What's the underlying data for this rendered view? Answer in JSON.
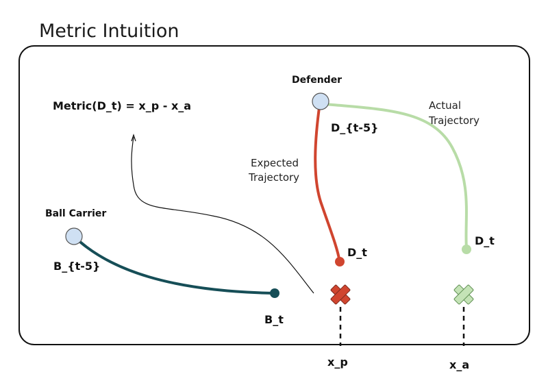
{
  "title": "Metric Intuition",
  "formula": "Metric(D_t) = x_p - x_a",
  "defender": {
    "label": "Defender",
    "start_label": "D_{t-5}"
  },
  "ball_carrier": {
    "label": "Ball Carrier",
    "start_label": "B_{t-5}",
    "end_label": "B_t"
  },
  "expected_trajectory": {
    "label_line1": "Expected",
    "label_line2": "Trajectory",
    "end_label": "D_t"
  },
  "actual_trajectory": {
    "label_line1": "Actual",
    "label_line2": "Trajectory",
    "end_label": "D_t"
  },
  "markers": {
    "predicted_label": "x_p",
    "actual_label": "x_a"
  },
  "colors": {
    "frame": "#111111",
    "start_node_fill": "#cfe0f3",
    "ball_carrier_path": "#164e57",
    "expected_path": "#d0452f",
    "actual_path": "#b8dca7",
    "predicted_marker": "#d0452f",
    "actual_marker": "#c4e3b6"
  }
}
